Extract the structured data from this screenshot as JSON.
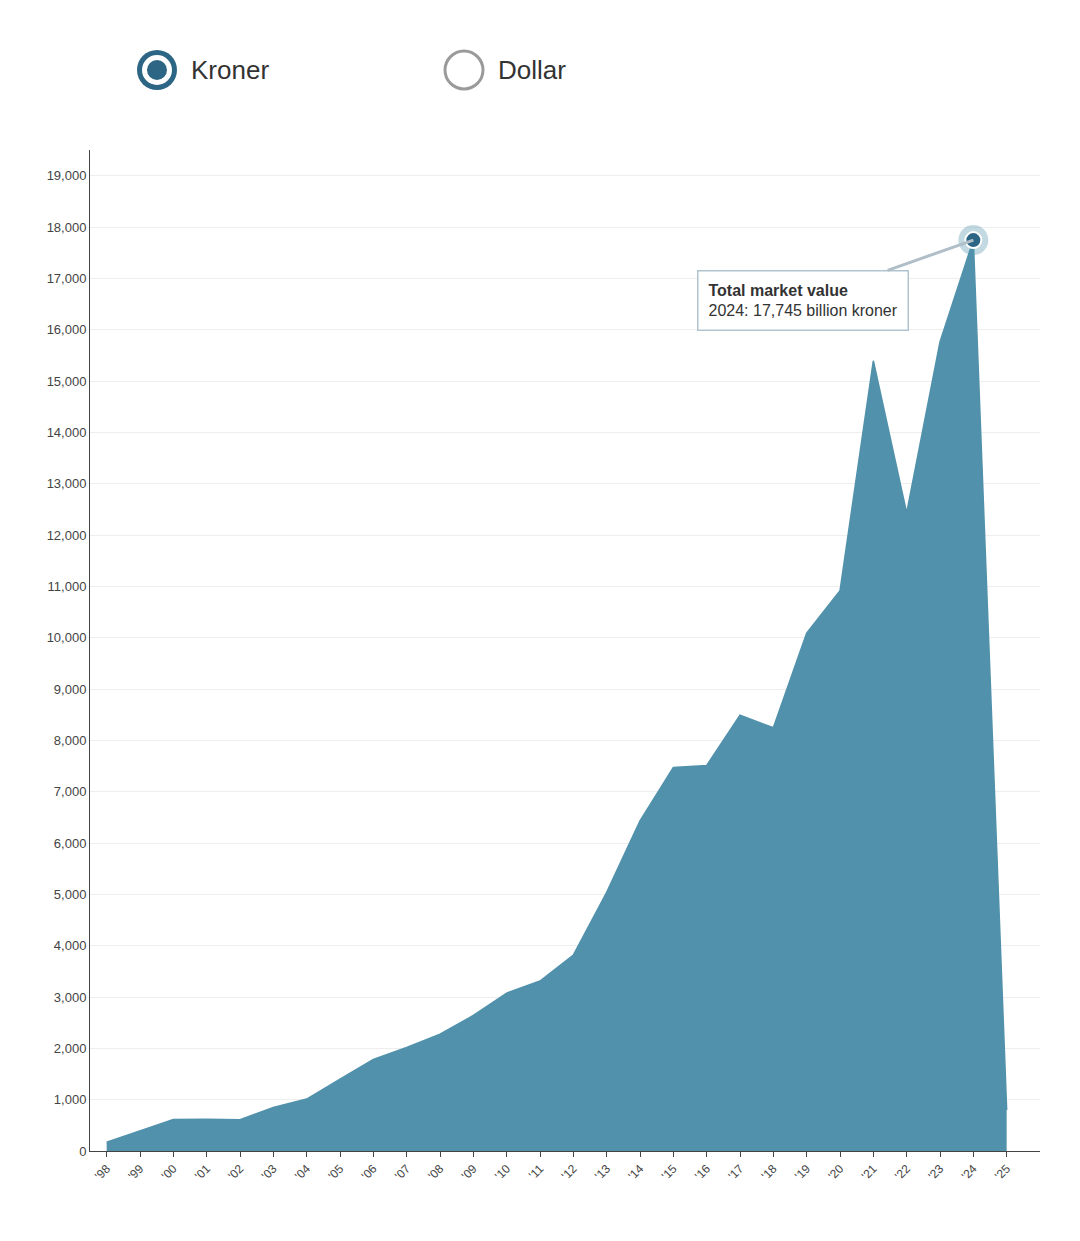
{
  "chart_data": {
    "type": "area",
    "x": [
      1998,
      1999,
      2000,
      2001,
      2002,
      2003,
      2004,
      2005,
      2006,
      2007,
      2008,
      2009,
      2010,
      2011,
      2012,
      2013,
      2014,
      2015,
      2016,
      2017,
      2018,
      2019,
      2020,
      2021,
      2022,
      2023,
      2024,
      2025
    ],
    "values": [
      171,
      386,
      613,
      619,
      610,
      846,
      1011,
      1399,
      1782,
      2018,
      2275,
      2640,
      3077,
      3312,
      3816,
      5038,
      6431,
      7471,
      7510,
      8488,
      8244,
      10088,
      10914,
      15394,
      12429,
      15762,
      17745,
      800
    ],
    "color": "#5191ab",
    "xlim": [
      1997.5,
      2026.0
    ],
    "xticks": [
      {
        "value": 1998,
        "label": "'98"
      },
      {
        "value": 1999,
        "label": "'99"
      },
      {
        "value": 2000,
        "label": "'00"
      },
      {
        "value": 2001,
        "label": "'01"
      },
      {
        "value": 2002,
        "label": "'02"
      },
      {
        "value": 2003,
        "label": "'03"
      },
      {
        "value": 2004,
        "label": "'04"
      },
      {
        "value": 2005,
        "label": "'05"
      },
      {
        "value": 2006,
        "label": "'06"
      },
      {
        "value": 2007,
        "label": "'07"
      },
      {
        "value": 2008,
        "label": "'08"
      },
      {
        "value": 2009,
        "label": "'09"
      },
      {
        "value": 2010,
        "label": "'10"
      },
      {
        "value": 2011,
        "label": "'11"
      },
      {
        "value": 2012,
        "label": "'12"
      },
      {
        "value": 2013,
        "label": "'13"
      },
      {
        "value": 2014,
        "label": "'14"
      },
      {
        "value": 2015,
        "label": "'15"
      },
      {
        "value": 2016,
        "label": "'16"
      },
      {
        "value": 2017,
        "label": "'17"
      },
      {
        "value": 2018,
        "label": "'18"
      },
      {
        "value": 2019,
        "label": "'19"
      },
      {
        "value": 2020,
        "label": "'20"
      },
      {
        "value": 2021,
        "label": "'21"
      },
      {
        "value": 2022,
        "label": "'22"
      },
      {
        "value": 2023,
        "label": "'23"
      },
      {
        "value": 2024,
        "label": "'24"
      },
      {
        "value": 2025,
        "label": "'25"
      }
    ],
    "ylim": [
      0,
      19500
    ],
    "yticks": [
      0,
      {
        "value": 1000,
        "label": "1,000"
      },
      {
        "value": 2000,
        "label": "2,000"
      },
      {
        "value": 3000,
        "label": "3,000"
      },
      {
        "value": 4000,
        "label": "4,000"
      },
      {
        "value": 5000,
        "label": "5,000"
      },
      {
        "value": 6000,
        "label": "6,000"
      },
      {
        "value": 7000,
        "label": "7,000"
      },
      {
        "value": 8000,
        "label": "8,000"
      },
      {
        "value": 9000,
        "label": "9,000"
      },
      {
        "value": 10000,
        "label": "10,000"
      },
      {
        "value": 11000,
        "label": "11,000"
      },
      {
        "value": 12000,
        "label": "12,000"
      },
      {
        "value": 13000,
        "label": "13,000"
      },
      {
        "value": 14000,
        "label": "14,000"
      },
      {
        "value": 15000,
        "label": "15,000"
      },
      {
        "value": 16000,
        "label": "16,000"
      },
      {
        "value": 17000,
        "label": "17,000"
      },
      {
        "value": 18000,
        "label": "18,000"
      },
      {
        "value": 19000,
        "label": "19,000"
      }
    ],
    "grid": true,
    "annotations": [
      {
        "x": 2024,
        "y": 17745,
        "title": "Total market value",
        "text": "2024: 17,745 billion kroner"
      }
    ],
    "buttons": [
      {
        "label": "Kroner",
        "selected": true
      },
      {
        "label": "Dollar",
        "selected": false
      }
    ]
  }
}
